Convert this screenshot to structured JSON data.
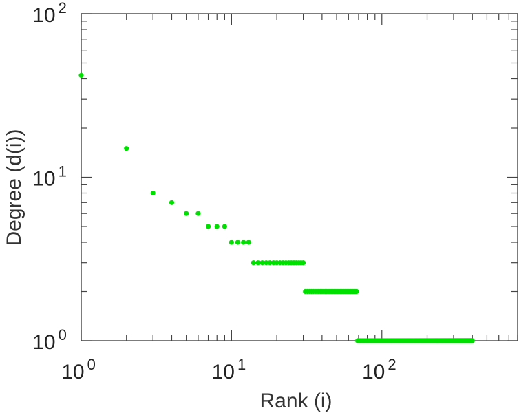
{
  "chart_data": {
    "type": "scatter",
    "title": "",
    "xlabel": "Rank (i)",
    "ylabel": "Degree (d(i))",
    "xscale": "log",
    "yscale": "log",
    "xlim": [
      1,
      800
    ],
    "ylim": [
      1,
      100
    ],
    "grid": false,
    "legend": "none",
    "x_tick_labels": [
      {
        "base": "10",
        "exp": "0",
        "value": 1
      },
      {
        "base": "10",
        "exp": "1",
        "value": 10
      },
      {
        "base": "10",
        "exp": "2",
        "value": 100
      }
    ],
    "y_tick_labels": [
      {
        "base": "10",
        "exp": "0",
        "value": 1
      },
      {
        "base": "10",
        "exp": "1",
        "value": 10
      },
      {
        "base": "10",
        "exp": "2",
        "value": 100
      }
    ],
    "marker_color": "#00e000",
    "axis_color": "#444444",
    "series": [
      {
        "points": [
          {
            "x": 1,
            "y": 42
          },
          {
            "x": 2,
            "y": 15
          },
          {
            "x": 3,
            "y": 8
          },
          {
            "x": 4,
            "y": 7
          },
          {
            "x": 5,
            "y": 6
          },
          {
            "x": 6,
            "y": 6
          },
          {
            "x": 7,
            "y": 5
          },
          {
            "x": 8,
            "y": 5
          },
          {
            "x": 9,
            "y": 5
          },
          {
            "x": 10,
            "y": 4
          },
          {
            "x": 11,
            "y": 4
          },
          {
            "x": 12,
            "y": 4
          },
          {
            "x": 13,
            "y": 4
          }
        ],
        "runs": [
          {
            "from": 14,
            "to": 30,
            "y": 3
          },
          {
            "from": 31,
            "to": 68,
            "y": 2
          },
          {
            "from": 69,
            "to": 400,
            "y": 1
          }
        ]
      }
    ]
  }
}
